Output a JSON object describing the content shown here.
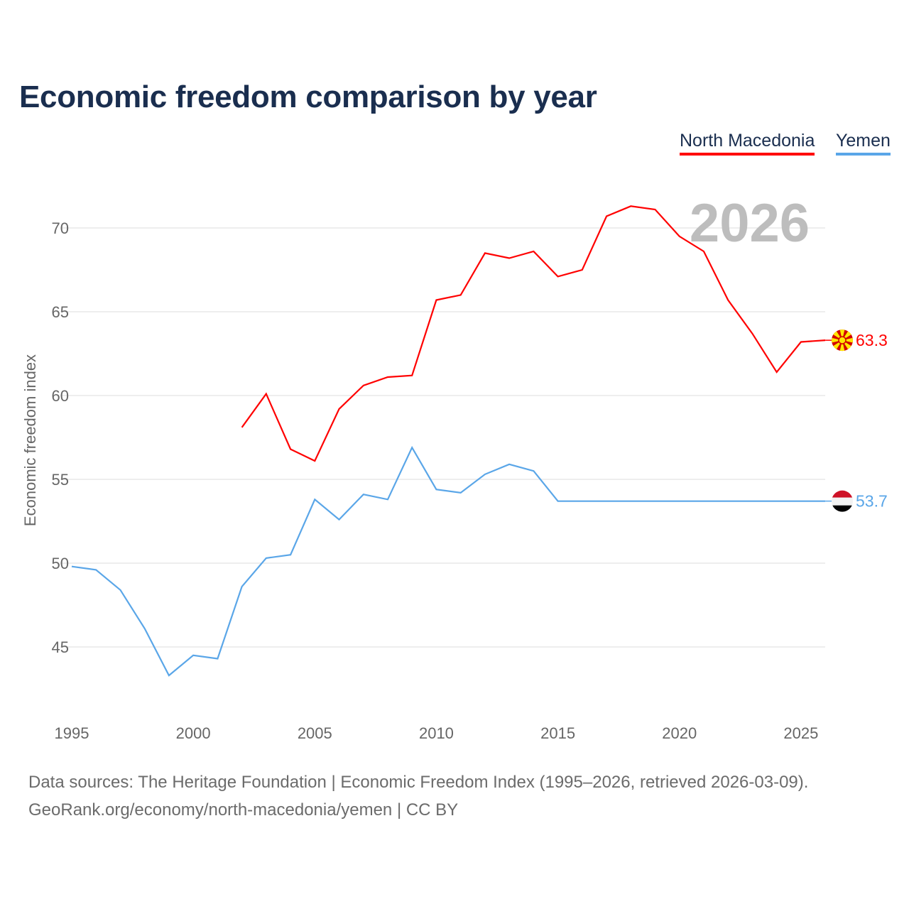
{
  "title": "Economic freedom comparison by year",
  "legend": [
    "North Macedonia",
    "Yemen"
  ],
  "watermark_year": "2026",
  "footer": {
    "line1": "Data sources: The Heritage Foundation | Economic Freedom Index (1995–2026, retrieved 2026-03-09).",
    "line2": "GeoRank.org/economy/north-macedonia/yemen | CC BY"
  },
  "chart_data": {
    "type": "line",
    "title": "Economic freedom comparison by year",
    "xlabel": "",
    "ylabel": "Economic freedom index",
    "xlim": [
      1995,
      2026
    ],
    "ylim": [
      41.5,
      72.5
    ],
    "xticks": [
      1995,
      2000,
      2005,
      2010,
      2015,
      2020,
      2025
    ],
    "yticks": [
      45,
      50,
      55,
      60,
      65,
      70
    ],
    "grid": true,
    "legend_position": "top-right",
    "series": [
      {
        "name": "North Macedonia",
        "color": "#ff0000",
        "end_label": "63.3",
        "flag": "north-macedonia-flag",
        "x": [
          2002,
          2003,
          2004,
          2005,
          2006,
          2007,
          2008,
          2009,
          2010,
          2011,
          2012,
          2013,
          2014,
          2015,
          2016,
          2017,
          2018,
          2019,
          2020,
          2021,
          2022,
          2023,
          2024,
          2025,
          2026
        ],
        "values": [
          58.1,
          60.1,
          56.8,
          56.1,
          59.2,
          60.6,
          61.1,
          61.2,
          65.7,
          66.0,
          68.5,
          68.2,
          68.6,
          67.1,
          67.5,
          70.7,
          71.3,
          71.1,
          69.5,
          68.6,
          65.7,
          63.7,
          61.4,
          63.2,
          63.3
        ]
      },
      {
        "name": "Yemen",
        "color": "#5aa6e8",
        "end_label": "53.7",
        "flag": "yemen-flag",
        "x": [
          1995,
          1996,
          1997,
          1998,
          1999,
          2000,
          2001,
          2002,
          2003,
          2004,
          2005,
          2006,
          2007,
          2008,
          2009,
          2010,
          2011,
          2012,
          2013,
          2014,
          2015,
          2016,
          2017,
          2018,
          2019,
          2020,
          2021,
          2022,
          2023,
          2024,
          2025,
          2026
        ],
        "values": [
          49.8,
          49.6,
          48.4,
          46.1,
          43.3,
          44.5,
          44.3,
          48.6,
          50.3,
          50.5,
          53.8,
          52.6,
          54.1,
          53.8,
          56.9,
          54.4,
          54.2,
          55.3,
          55.9,
          55.5,
          53.7,
          53.7,
          53.7,
          53.7,
          53.7,
          53.7,
          53.7,
          53.7,
          53.7,
          53.7,
          53.7,
          53.7
        ]
      }
    ]
  }
}
